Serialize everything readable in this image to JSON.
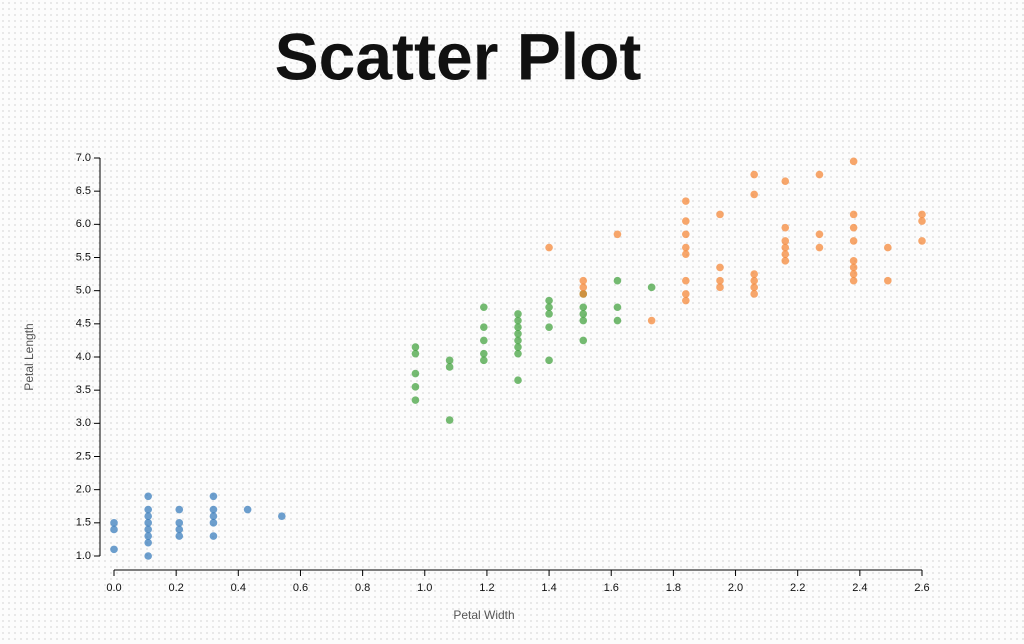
{
  "chart_data": {
    "type": "scatter",
    "title": "Scatter Plot",
    "x_label": "Petal Width",
    "y_label": "Petal Length",
    "xlim": [
      0,
      2.6
    ],
    "ylim": [
      1,
      7
    ],
    "xticks": [
      {
        "value": 0,
        "label": "0.0"
      },
      0.2,
      0.4,
      0.6,
      0.8,
      {
        "value": 1,
        "label": "1.0"
      },
      1.2,
      1.4,
      1.6,
      1.8,
      {
        "value": 2,
        "label": "2.0"
      },
      2.2,
      2.4,
      2.6
    ],
    "yticks": [
      {
        "value": 1,
        "label": "1.0"
      },
      1.5,
      {
        "value": 2,
        "label": "2.0"
      },
      2.5,
      {
        "value": 3,
        "label": "3.0"
      },
      3.5,
      {
        "value": 4,
        "label": "4.0"
      },
      4.5,
      {
        "value": 5,
        "label": "5.0"
      },
      5.5,
      {
        "value": 6,
        "label": "6.0"
      },
      6.5,
      {
        "value": 7,
        "label": "7.0"
      }
    ],
    "series": [
      {
        "color": "#2f76b9",
        "x": [
          0,
          0,
          0,
          0.11,
          0.11,
          0.11,
          0.11,
          0.11,
          0.11,
          0.11,
          0.11,
          0.21,
          0.21,
          0.21,
          0.21,
          0.32,
          0.32,
          0.32,
          0.32,
          0.32,
          0.43,
          0.54
        ],
        "values": [
          1.5,
          1.4,
          1.1,
          1.9,
          1.7,
          1.6,
          1.5,
          1.4,
          1.3,
          1.2,
          1.0,
          1.7,
          1.5,
          1.4,
          1.3,
          1.9,
          1.7,
          1.6,
          1.5,
          1.3,
          1.7,
          1.6
        ]
      },
      {
        "color": "#3a9e36",
        "x": [
          0.97,
          0.97,
          0.97,
          0.97,
          0.97,
          1.08,
          1.08,
          1.08,
          1.19,
          1.19,
          1.19,
          1.19,
          1.19,
          1.3,
          1.3,
          1.3,
          1.3,
          1.3,
          1.3,
          1.3,
          1.3,
          1.4,
          1.4,
          1.4,
          1.4,
          1.4,
          1.51,
          1.51,
          1.51,
          1.51,
          1.51,
          1.62,
          1.62,
          1.62,
          1.73
        ],
        "values": [
          4.15,
          4.05,
          3.75,
          3.55,
          3.35,
          3.95,
          3.85,
          3.05,
          4.75,
          4.45,
          4.25,
          4.05,
          3.95,
          4.65,
          4.55,
          4.45,
          4.35,
          4.25,
          4.15,
          4.05,
          3.65,
          4.85,
          4.75,
          4.65,
          4.45,
          3.95,
          4.95,
          4.75,
          4.65,
          4.55,
          4.25,
          5.15,
          4.75,
          4.55,
          5.05
        ]
      },
      {
        "color": "#f5822e",
        "x": [
          1.4,
          1.51,
          1.51,
          1.51,
          1.62,
          1.73,
          1.84,
          1.84,
          1.84,
          1.84,
          1.84,
          1.84,
          1.84,
          1.84,
          1.95,
          1.95,
          1.95,
          1.95,
          2.06,
          2.06,
          2.06,
          2.06,
          2.06,
          2.06,
          2.16,
          2.16,
          2.16,
          2.16,
          2.16,
          2.16,
          2.27,
          2.27,
          2.27,
          2.38,
          2.38,
          2.38,
          2.38,
          2.38,
          2.38,
          2.38,
          2.38,
          2.49,
          2.49,
          2.6,
          2.6,
          2.6
        ],
        "values": [
          5.65,
          5.15,
          5.05,
          4.95,
          5.85,
          4.55,
          6.35,
          6.05,
          5.85,
          5.65,
          5.55,
          5.15,
          4.95,
          4.85,
          6.15,
          5.35,
          5.15,
          5.05,
          6.75,
          6.45,
          5.25,
          5.15,
          5.05,
          4.95,
          6.65,
          5.95,
          5.75,
          5.65,
          5.55,
          5.45,
          6.75,
          5.85,
          5.65,
          6.95,
          6.15,
          5.95,
          5.75,
          5.45,
          5.35,
          5.25,
          5.15,
          5.65,
          5.15,
          6.15,
          6.05,
          5.75
        ]
      }
    ]
  }
}
